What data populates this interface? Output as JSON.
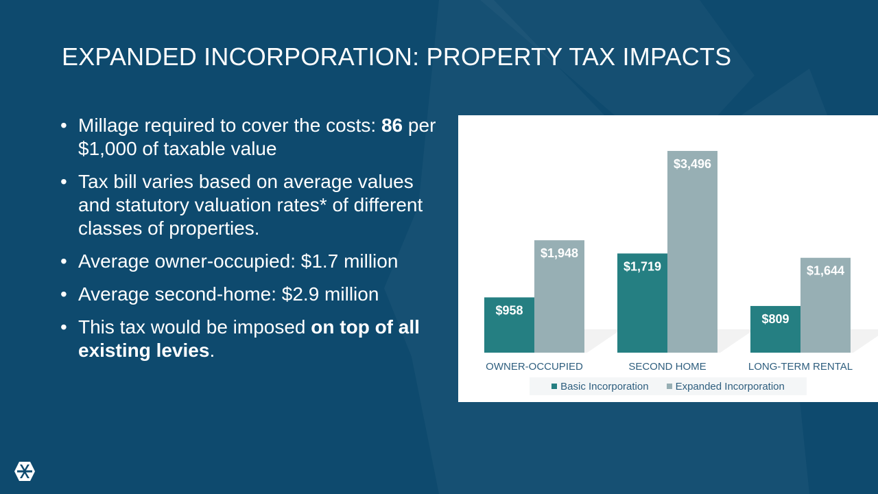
{
  "slide": {
    "title": "EXPANDED INCORPORATION: PROPERTY TAX IMPACTS",
    "bullets": [
      {
        "parts": [
          {
            "text": "Millage required to cover the costs: ",
            "bold": false
          },
          {
            "text": "86",
            "bold": true
          },
          {
            "text": " per $1,000 of taxable value",
            "bold": false
          }
        ]
      },
      {
        "parts": [
          {
            "text": "Tax bill varies based on average values and statutory valuation rates* of different classes of properties.",
            "bold": false
          }
        ]
      },
      {
        "parts": [
          {
            "text": "Average owner-occupied: $1.7 million",
            "bold": false
          }
        ]
      },
      {
        "parts": [
          {
            "text": "Average second-home: $2.9 million",
            "bold": false
          }
        ]
      },
      {
        "parts": [
          {
            "text": "This tax would be imposed ",
            "bold": false
          },
          {
            "text": "on top of all existing levies",
            "bold": true
          },
          {
            "text": ".",
            "bold": false
          }
        ]
      }
    ],
    "bullet_symbol": "•"
  },
  "chart_data": {
    "type": "bar",
    "categories": [
      "OWNER-OCCUPIED",
      "SECOND HOME",
      "LONG-TERM RENTAL"
    ],
    "series": [
      {
        "name": "Basic Incorporation",
        "values": [
          958,
          1719,
          809
        ],
        "labels": [
          "$958",
          "$1,719",
          "$809"
        ],
        "color": "#257f82"
      },
      {
        "name": "Expanded Incorporation",
        "values": [
          1948,
          3496,
          1644
        ],
        "labels": [
          "$1,948",
          "$3,496",
          "$1,644"
        ],
        "color": "#97afb4"
      }
    ],
    "ylim": [
      0,
      3900
    ],
    "grid": false,
    "legend_position": "bottom"
  },
  "colors": {
    "background": "#0e4a6e",
    "text": "#ffffff",
    "axis_text": "#2e5e7e"
  },
  "icons": {
    "logo": "ski-resort-logo-icon"
  }
}
